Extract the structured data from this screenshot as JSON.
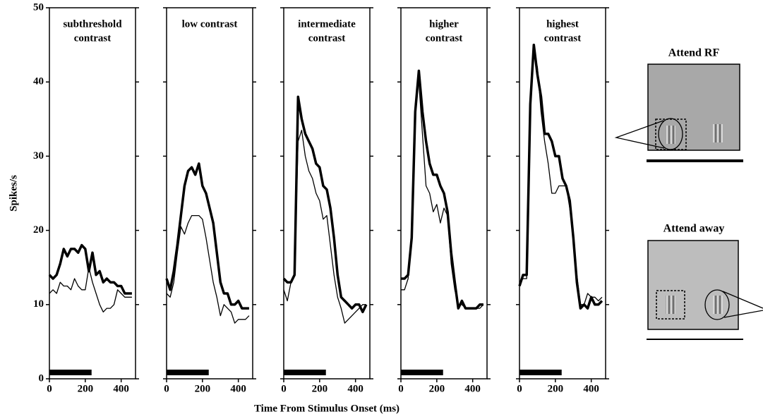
{
  "figure": {
    "xlabel": "Time From Stimulus Onset (ms)",
    "ylabel": "Spikes/s"
  },
  "schematic": {
    "panels": [
      {
        "title": "Attend RF"
      },
      {
        "title": "Attend away"
      }
    ]
  },
  "chart_data": [
    {
      "type": "line",
      "title": [
        "subthreshold",
        "contrast"
      ],
      "xlim": [
        0,
        480
      ],
      "ylim": [
        0,
        50
      ],
      "xticks": [
        0,
        200,
        400
      ],
      "yticks": [
        0,
        10,
        20,
        30,
        40,
        50
      ],
      "ytick_labels": true,
      "stimulus_x": [
        0,
        235
      ],
      "x": [
        0,
        20,
        40,
        60,
        80,
        100,
        120,
        140,
        160,
        180,
        200,
        220,
        240,
        260,
        280,
        300,
        320,
        340,
        360,
        380,
        400,
        420,
        440,
        460
      ],
      "series": [
        {
          "color": "#000000",
          "width": 3.5,
          "values": [
            14,
            13.5,
            14,
            15.5,
            17.5,
            16.5,
            17.5,
            17.5,
            17,
            18,
            17.5,
            14.5,
            17,
            14,
            14.5,
            13,
            13.5,
            13,
            13,
            12.5,
            12.5,
            11.5,
            11.5,
            11.5
          ]
        },
        {
          "color": "#000000",
          "width": 1.3,
          "values": [
            11.5,
            12,
            11.5,
            13,
            12.5,
            12.5,
            12,
            13.5,
            12.5,
            12,
            12,
            15,
            13,
            11.5,
            10,
            9,
            9.5,
            9.5,
            10,
            12,
            11.5,
            11,
            11,
            11
          ]
        }
      ]
    },
    {
      "type": "line",
      "title": [
        "low contrast"
      ],
      "xlim": [
        0,
        480
      ],
      "ylim": [
        0,
        50
      ],
      "xticks": [
        0,
        200,
        400
      ],
      "yticks": [
        0,
        10,
        20,
        30,
        40,
        50
      ],
      "ytick_labels": false,
      "stimulus_x": [
        0,
        235
      ],
      "x": [
        0,
        20,
        40,
        60,
        80,
        100,
        120,
        140,
        160,
        180,
        200,
        220,
        240,
        260,
        280,
        300,
        320,
        340,
        360,
        380,
        400,
        420,
        440,
        460
      ],
      "series": [
        {
          "color": "#000000",
          "width": 3.5,
          "values": [
            13.5,
            12,
            14.5,
            18,
            22,
            26,
            28,
            28.5,
            27.5,
            29,
            26,
            25,
            23,
            21,
            17,
            13,
            11.5,
            11.5,
            10,
            10,
            10.5,
            9.5,
            9.5,
            9.5
          ]
        },
        {
          "color": "#000000",
          "width": 1.3,
          "values": [
            11.5,
            11,
            13,
            17,
            20.5,
            19.5,
            21,
            22,
            22,
            22,
            21.5,
            19,
            16,
            13,
            11,
            8.5,
            10,
            9.5,
            9,
            7.5,
            8,
            8,
            8,
            8.5
          ]
        }
      ]
    },
    {
      "type": "line",
      "title": [
        "intermediate",
        "contrast"
      ],
      "xlim": [
        0,
        480
      ],
      "ylim": [
        0,
        50
      ],
      "xticks": [
        0,
        200,
        400
      ],
      "yticks": [
        0,
        10,
        20,
        30,
        40,
        50
      ],
      "ytick_labels": false,
      "stimulus_x": [
        0,
        235
      ],
      "x": [
        0,
        20,
        40,
        60,
        80,
        100,
        120,
        140,
        160,
        180,
        200,
        220,
        240,
        260,
        280,
        300,
        320,
        340,
        360,
        380,
        400,
        420,
        440,
        460
      ],
      "series": [
        {
          "color": "#000000",
          "width": 3.5,
          "values": [
            13.5,
            13,
            13,
            14,
            38,
            35,
            33,
            32,
            31,
            29,
            28.5,
            26,
            25.5,
            23,
            19,
            14,
            11,
            10.5,
            10,
            9.5,
            10,
            10,
            9,
            10
          ]
        },
        {
          "color": "#000000",
          "width": 1.3,
          "values": [
            12,
            10.5,
            13,
            14,
            32,
            33.5,
            30,
            28,
            27,
            25,
            24,
            21.5,
            22,
            18,
            14,
            11,
            9.5,
            7.5,
            8,
            8.5,
            9,
            9.5,
            10,
            10
          ]
        }
      ]
    },
    {
      "type": "line",
      "title": [
        "higher",
        "contrast"
      ],
      "xlim": [
        0,
        480
      ],
      "ylim": [
        0,
        50
      ],
      "xticks": [
        0,
        200,
        400
      ],
      "yticks": [
        0,
        10,
        20,
        30,
        40,
        50
      ],
      "ytick_labels": false,
      "stimulus_x": [
        0,
        235
      ],
      "x": [
        0,
        20,
        40,
        60,
        80,
        100,
        120,
        140,
        160,
        180,
        200,
        220,
        240,
        260,
        280,
        300,
        320,
        340,
        360,
        380,
        400,
        420,
        440,
        460
      ],
      "series": [
        {
          "color": "#000000",
          "width": 3.5,
          "values": [
            13.5,
            13.5,
            14,
            19,
            36,
            41.5,
            36,
            32,
            29,
            27.5,
            27.5,
            26,
            25,
            22.5,
            17,
            13,
            9.5,
            10.5,
            9.5,
            9.5,
            9.5,
            9.5,
            10,
            10
          ]
        },
        {
          "color": "#000000",
          "width": 1.3,
          "values": [
            12,
            12,
            13.5,
            19,
            37,
            40,
            33,
            26,
            25,
            22.5,
            23.5,
            21,
            23,
            22,
            15.5,
            12,
            10,
            10,
            9.5,
            9.5,
            9.5,
            9.5,
            9.5,
            10
          ]
        }
      ]
    },
    {
      "type": "line",
      "title": [
        "highest",
        "contrast"
      ],
      "xlim": [
        0,
        480
      ],
      "ylim": [
        0,
        50
      ],
      "xticks": [
        0,
        200,
        400
      ],
      "yticks": [
        0,
        10,
        20,
        30,
        40,
        50
      ],
      "ytick_labels": false,
      "stimulus_x": [
        0,
        235
      ],
      "x": [
        0,
        20,
        40,
        60,
        80,
        100,
        120,
        140,
        160,
        180,
        200,
        220,
        240,
        260,
        280,
        300,
        320,
        340,
        360,
        380,
        400,
        420,
        440,
        460
      ],
      "series": [
        {
          "color": "#000000",
          "width": 3.5,
          "values": [
            12.5,
            14,
            14,
            37,
            45,
            41,
            38,
            33,
            33,
            32,
            30,
            30,
            27,
            26,
            24,
            19,
            13,
            9.5,
            10,
            9.5,
            11,
            10,
            10,
            10.5
          ]
        },
        {
          "color": "#000000",
          "width": 1.3,
          "values": [
            13,
            13.5,
            13.5,
            36,
            44,
            42,
            36,
            32,
            29,
            25,
            25,
            26,
            26,
            26,
            23,
            19,
            14,
            10,
            10,
            11.5,
            11,
            11,
            10.5,
            11
          ]
        }
      ]
    }
  ]
}
